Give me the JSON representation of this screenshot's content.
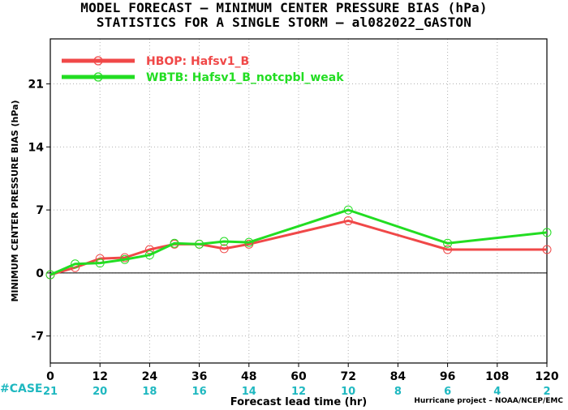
{
  "title_line1": "MODEL FORECAST – MINIMUM CENTER PRESSURE BIAS (hPa)",
  "title_line2": "STATISTICS FOR A SINGLE STORM – al082022_GASTON",
  "credit": "Hurricane project – NOAA/NCEP/EMC",
  "case_label": "#CASE",
  "colors": {
    "hbop": "#f04848",
    "wbtb": "#22dd22",
    "case_counts": "#1fb8c0",
    "grid": "#b0b0b0",
    "axis": "#000000"
  },
  "chart_data": {
    "type": "line",
    "title": "MODEL FORECAST – MINIMUM CENTER PRESSURE BIAS (hPa)",
    "subtitle": "STATISTICS FOR A SINGLE STORM – al082022_GASTON",
    "xlabel": "Forecast lead time (hr)",
    "ylabel": "MINIMUM CENTER PRESSURE BIAS (hPa)",
    "xlim": [
      0,
      120
    ],
    "ylim": [
      -10,
      26
    ],
    "xticks": [
      0,
      12,
      24,
      36,
      48,
      60,
      72,
      84,
      96,
      108,
      120
    ],
    "yticks": [
      -7,
      0,
      7,
      14,
      21
    ],
    "grid": true,
    "legend": "top-left",
    "case_hours": [
      0,
      12,
      24,
      36,
      48,
      60,
      72,
      84,
      96,
      108,
      120
    ],
    "case_counts": [
      21,
      20,
      18,
      16,
      14,
      12,
      10,
      8,
      6,
      4,
      2
    ],
    "series": [
      {
        "name": "HBOP: Hafsv1_B",
        "color": "#f04848",
        "x": [
          0,
          6,
          12,
          18,
          24,
          30,
          36,
          42,
          48,
          72,
          96,
          120
        ],
        "y": [
          -0.2,
          0.6,
          1.6,
          1.7,
          2.6,
          3.2,
          3.2,
          2.7,
          3.2,
          5.8,
          2.6,
          2.6
        ]
      },
      {
        "name": "WBTB: Hafsv1_B_notcpbl_weak",
        "color": "#22dd22",
        "x": [
          0,
          6,
          12,
          18,
          24,
          30,
          36,
          42,
          48,
          72,
          96,
          120
        ],
        "y": [
          -0.2,
          1.0,
          1.1,
          1.5,
          2.0,
          3.3,
          3.2,
          3.5,
          3.4,
          7.0,
          3.3,
          4.5
        ]
      }
    ]
  }
}
